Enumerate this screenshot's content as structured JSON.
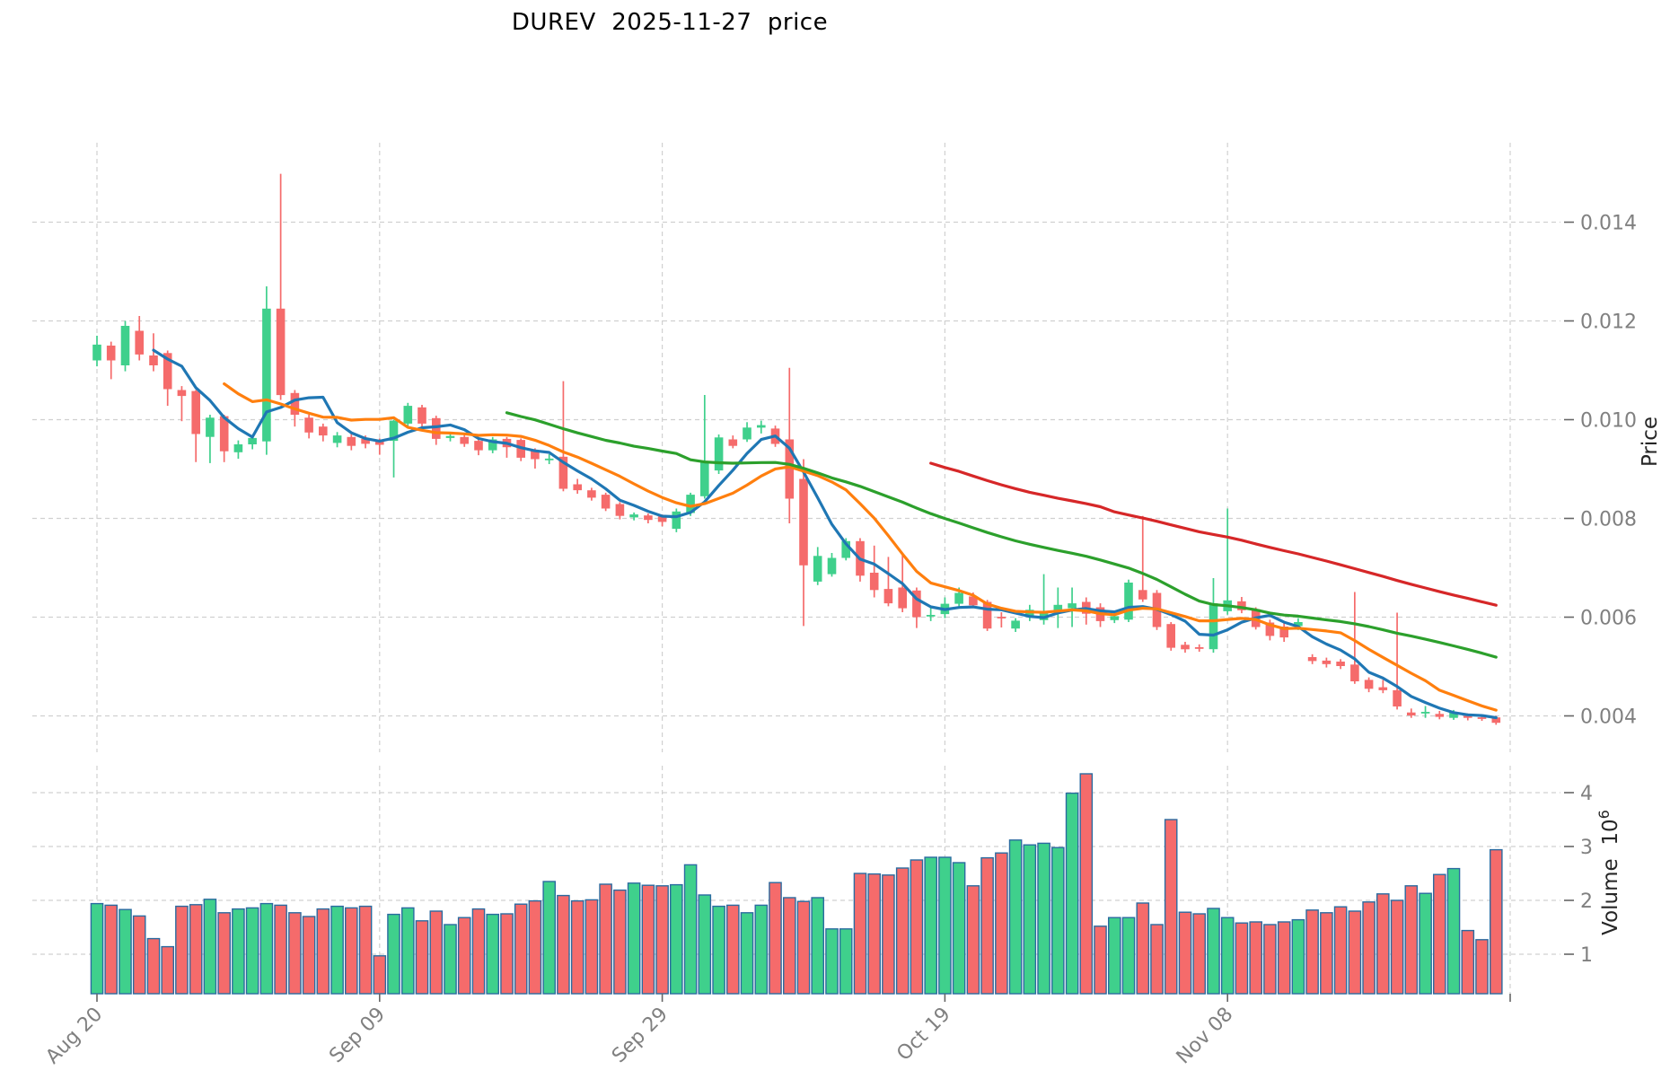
{
  "title": "DUREV  2025-11-27  price",
  "axes": {
    "price_label": "Price",
    "volume_label": "Volume",
    "volume_unit_base": "10",
    "volume_unit_exp": "6",
    "x_ticks": [
      {
        "index": 0,
        "label": "Aug 20"
      },
      {
        "index": 20,
        "label": "Sep 09"
      },
      {
        "index": 40,
        "label": "Sep 29"
      },
      {
        "index": 60,
        "label": "Oct 19"
      },
      {
        "index": 80,
        "label": "Nov 08"
      },
      {
        "index": 100,
        "label": ""
      }
    ],
    "price_ticks": [
      {
        "value": 0.014,
        "label": "0.014"
      },
      {
        "value": 0.012,
        "label": "0.012"
      },
      {
        "value": 0.01,
        "label": "0.010"
      },
      {
        "value": 0.008,
        "label": "0.008"
      },
      {
        "value": 0.006,
        "label": "0.006"
      },
      {
        "value": 0.004,
        "label": "0.004"
      }
    ],
    "volume_ticks": [
      {
        "value": 4,
        "label": "4"
      },
      {
        "value": 3,
        "label": "3"
      },
      {
        "value": 2,
        "label": "2"
      },
      {
        "value": 1,
        "label": "1"
      }
    ]
  },
  "style": {
    "up_color": "#3fd08c",
    "down_color": "#f56b6b",
    "volume_edge_color": "#2b6ba0",
    "ma_colors": [
      "#1f77b4",
      "#ff7f0e",
      "#2ca02c",
      "#d62728"
    ],
    "grid_color": "#d0d0d0",
    "tick_label_color": "#808080",
    "tick_mark_color": "#666666",
    "axis_label_color": "#262626",
    "title_color": "#000000",
    "background": "#ffffff"
  },
  "chart_data": {
    "type": "candlestick_with_volume",
    "symbol": "DUREV",
    "price_axis_range": [
      0.00326,
      0.01561
    ],
    "volume_axis_range_millions": [
      0.27,
      4.5
    ],
    "mav_windows": [
      5,
      10,
      30,
      60
    ],
    "ohlcv_columns": [
      "open",
      "high",
      "low",
      "close",
      "volume_millions"
    ],
    "ohlcv": [
      [
        0.0112,
        0.0117,
        0.01108,
        0.01152,
        1.94
      ],
      [
        0.0115,
        0.01158,
        0.01082,
        0.0112,
        1.91
      ],
      [
        0.0111,
        0.012,
        0.01098,
        0.0119,
        1.83
      ],
      [
        0.0118,
        0.0121,
        0.0112,
        0.01132,
        1.71
      ],
      [
        0.0113,
        0.01175,
        0.01098,
        0.0111,
        1.29
      ],
      [
        0.01135,
        0.0114,
        0.01028,
        0.01062,
        1.14
      ],
      [
        0.0106,
        0.01068,
        0.00997,
        0.01048,
        1.89
      ],
      [
        0.01058,
        0.0106,
        0.00914,
        0.00971,
        1.92
      ],
      [
        0.00965,
        0.0101,
        0.00912,
        0.01004,
        2.02
      ],
      [
        0.01007,
        0.0101,
        0.00914,
        0.00936,
        1.77
      ],
      [
        0.00934,
        0.00958,
        0.00921,
        0.0095,
        1.84
      ],
      [
        0.0095,
        0.00968,
        0.0094,
        0.00963,
        1.86
      ],
      [
        0.00956,
        0.0127,
        0.00929,
        0.01225,
        1.94
      ],
      [
        0.01225,
        0.01498,
        0.0104,
        0.0105,
        1.91
      ],
      [
        0.01054,
        0.0106,
        0.00986,
        0.0101,
        1.77
      ],
      [
        0.01004,
        0.0101,
        0.00962,
        0.00974,
        1.7
      ],
      [
        0.00986,
        0.00992,
        0.00956,
        0.00968,
        1.84
      ],
      [
        0.00953,
        0.00975,
        0.00944,
        0.00968,
        1.89
      ],
      [
        0.00965,
        0.00972,
        0.00938,
        0.00947,
        1.86
      ],
      [
        0.00961,
        0.00968,
        0.00942,
        0.00951,
        1.89
      ],
      [
        0.00957,
        0.00962,
        0.00929,
        0.00949,
        0.97
      ],
      [
        0.00957,
        0.01,
        0.00883,
        0.00998,
        1.74
      ],
      [
        0.00992,
        0.01034,
        0.00984,
        0.01028,
        1.86
      ],
      [
        0.01025,
        0.0103,
        0.00985,
        0.00992,
        1.62
      ],
      [
        0.01003,
        0.01008,
        0.00949,
        0.00961,
        1.8
      ],
      [
        0.00963,
        0.00972,
        0.00956,
        0.00967,
        1.55
      ],
      [
        0.00965,
        0.0097,
        0.00945,
        0.00951,
        1.68
      ],
      [
        0.00957,
        0.0096,
        0.00928,
        0.00938,
        1.84
      ],
      [
        0.00938,
        0.00965,
        0.00932,
        0.0096,
        1.74
      ],
      [
        0.00961,
        0.00965,
        0.00923,
        0.00944,
        1.75
      ],
      [
        0.00959,
        0.00962,
        0.00916,
        0.00923,
        1.93
      ],
      [
        0.00938,
        0.00942,
        0.00901,
        0.0092,
        1.99
      ],
      [
        0.00918,
        0.0093,
        0.0091,
        0.00921,
        2.35
      ],
      [
        0.00925,
        0.01078,
        0.00855,
        0.0086,
        2.09
      ],
      [
        0.00869,
        0.0088,
        0.0085,
        0.00857,
        1.99
      ],
      [
        0.00857,
        0.00862,
        0.00836,
        0.00842,
        2.01
      ],
      [
        0.00848,
        0.00852,
        0.00815,
        0.0082,
        2.3
      ],
      [
        0.00829,
        0.00833,
        0.00798,
        0.00805,
        2.19
      ],
      [
        0.00802,
        0.00812,
        0.00796,
        0.00808,
        2.32
      ],
      [
        0.00806,
        0.0081,
        0.0079,
        0.00797,
        2.28
      ],
      [
        0.00804,
        0.00808,
        0.00784,
        0.00793,
        2.27
      ],
      [
        0.00779,
        0.0082,
        0.00772,
        0.00814,
        2.29
      ],
      [
        0.00811,
        0.00852,
        0.00805,
        0.00848,
        2.66
      ],
      [
        0.00845,
        0.0105,
        0.0084,
        0.00915,
        2.1
      ],
      [
        0.00897,
        0.0097,
        0.0089,
        0.00964,
        1.89
      ],
      [
        0.0096,
        0.00968,
        0.00942,
        0.00947,
        1.91
      ],
      [
        0.0096,
        0.00995,
        0.00955,
        0.00984,
        1.77
      ],
      [
        0.00984,
        0.00998,
        0.00972,
        0.00989,
        1.91
      ],
      [
        0.00982,
        0.00988,
        0.00945,
        0.00951,
        2.33
      ],
      [
        0.0096,
        0.01105,
        0.0079,
        0.0084,
        2.05
      ],
      [
        0.0088,
        0.0092,
        0.00582,
        0.00705,
        1.98
      ],
      [
        0.00672,
        0.00742,
        0.00665,
        0.00724,
        2.05
      ],
      [
        0.00687,
        0.0073,
        0.00682,
        0.0072,
        1.47
      ],
      [
        0.0072,
        0.0076,
        0.00715,
        0.00754,
        1.47
      ],
      [
        0.00754,
        0.0076,
        0.00672,
        0.00684,
        2.5
      ],
      [
        0.0069,
        0.00745,
        0.0064,
        0.00655,
        2.49
      ],
      [
        0.00657,
        0.00722,
        0.00622,
        0.00628,
        2.47
      ],
      [
        0.0066,
        0.00725,
        0.0061,
        0.00618,
        2.6
      ],
      [
        0.00654,
        0.0066,
        0.00578,
        0.006,
        2.75
      ],
      [
        0.00602,
        0.00621,
        0.00592,
        0.00604,
        2.8
      ],
      [
        0.00606,
        0.0064,
        0.00598,
        0.00627,
        2.8
      ],
      [
        0.00627,
        0.0066,
        0.0062,
        0.00649,
        2.7
      ],
      [
        0.00642,
        0.0065,
        0.00618,
        0.00624,
        2.27
      ],
      [
        0.00631,
        0.00635,
        0.00572,
        0.00577,
        2.79
      ],
      [
        0.006,
        0.0061,
        0.00579,
        0.00598,
        2.88
      ],
      [
        0.00577,
        0.00598,
        0.0057,
        0.00593,
        3.12
      ],
      [
        0.006,
        0.00625,
        0.00592,
        0.00615,
        3.03
      ],
      [
        0.00594,
        0.00687,
        0.00585,
        0.00612,
        3.06
      ],
      [
        0.0061,
        0.0066,
        0.00578,
        0.00625,
        2.98
      ],
      [
        0.00618,
        0.0066,
        0.0058,
        0.00628,
        3.99
      ],
      [
        0.00631,
        0.0064,
        0.00585,
        0.00607,
        4.35
      ],
      [
        0.0062,
        0.00628,
        0.0058,
        0.00592,
        1.52
      ],
      [
        0.00594,
        0.0061,
        0.00588,
        0.00602,
        1.68
      ],
      [
        0.00595,
        0.00676,
        0.0059,
        0.0067,
        1.68
      ],
      [
        0.00655,
        0.00805,
        0.00631,
        0.00636,
        1.95
      ],
      [
        0.00649,
        0.00655,
        0.00574,
        0.0058,
        1.55
      ],
      [
        0.00586,
        0.0059,
        0.00532,
        0.00538,
        3.5
      ],
      [
        0.00544,
        0.0055,
        0.00528,
        0.00535,
        1.78
      ],
      [
        0.00538,
        0.00545,
        0.0053,
        0.00537,
        1.75
      ],
      [
        0.00535,
        0.00679,
        0.00528,
        0.00628,
        1.85
      ],
      [
        0.00612,
        0.0082,
        0.00605,
        0.00634,
        1.68
      ],
      [
        0.00632,
        0.00641,
        0.00608,
        0.00614,
        1.58
      ],
      [
        0.00616,
        0.0062,
        0.00575,
        0.0058,
        1.6
      ],
      [
        0.00589,
        0.00595,
        0.00553,
        0.00562,
        1.55
      ],
      [
        0.00581,
        0.0059,
        0.0055,
        0.00559,
        1.6
      ],
      [
        0.00582,
        0.00598,
        0.00574,
        0.0059,
        1.64
      ],
      [
        0.00519,
        0.00525,
        0.00505,
        0.00511,
        1.82
      ],
      [
        0.00512,
        0.00518,
        0.00498,
        0.00505,
        1.77
      ],
      [
        0.0051,
        0.00515,
        0.00495,
        0.00501,
        1.88
      ],
      [
        0.00504,
        0.00651,
        0.00465,
        0.0047,
        1.8
      ],
      [
        0.00473,
        0.00478,
        0.00448,
        0.00455,
        1.97
      ],
      [
        0.00458,
        0.00473,
        0.00446,
        0.00452,
        2.12
      ],
      [
        0.00452,
        0.00609,
        0.00413,
        0.00419,
        2.0
      ],
      [
        0.00407,
        0.00415,
        0.00396,
        0.00401,
        2.27
      ],
      [
        0.00405,
        0.0042,
        0.00396,
        0.00408,
        2.13
      ],
      [
        0.00404,
        0.0041,
        0.00393,
        0.00398,
        2.48
      ],
      [
        0.00396,
        0.00412,
        0.00392,
        0.00408,
        2.59
      ],
      [
        0.004,
        0.00405,
        0.00391,
        0.00396,
        1.44
      ],
      [
        0.00397,
        0.00401,
        0.0039,
        0.00394,
        1.27
      ],
      [
        0.00397,
        0.004,
        0.00382,
        0.00386,
        2.94
      ]
    ]
  }
}
